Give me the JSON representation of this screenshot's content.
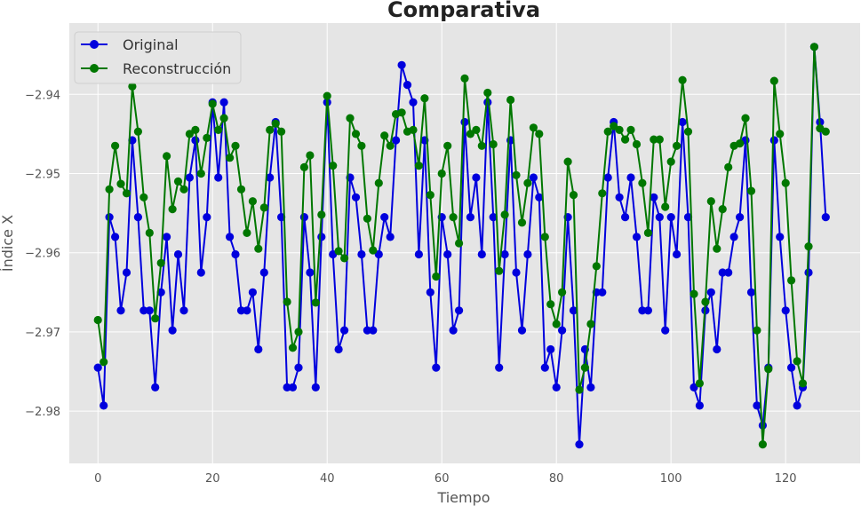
{
  "chart_data": {
    "type": "line",
    "title": "Comparativa",
    "xlabel": "Tiempo",
    "ylabel": "Índice X",
    "xlim": [
      -5,
      133
    ],
    "ylim": [
      -2.9866,
      -2.931
    ],
    "xticks": [
      0,
      20,
      40,
      60,
      80,
      100,
      120
    ],
    "xtick_labels": [
      "0",
      "20",
      "40",
      "60",
      "80",
      "100",
      "120"
    ],
    "yticks": [
      -2.98,
      -2.97,
      -2.96,
      -2.95,
      -2.94
    ],
    "ytick_labels": [
      "−2.98",
      "−2.97",
      "−2.96",
      "−2.95",
      "−2.94"
    ],
    "grid": true,
    "legend": "top-left",
    "series": [
      {
        "name": "Original",
        "color": "#0000dd",
        "x": [
          0,
          1,
          2,
          3,
          4,
          5,
          6,
          7,
          8,
          9,
          10,
          11,
          12,
          13,
          14,
          15,
          16,
          17,
          18,
          19,
          20,
          21,
          22,
          23,
          24,
          25,
          26,
          27,
          28,
          29,
          30,
          31,
          32,
          33,
          34,
          35,
          36,
          37,
          38,
          39,
          40,
          41,
          42,
          43,
          44,
          45,
          46,
          47,
          48,
          49,
          50,
          51,
          52,
          53,
          54,
          55,
          56,
          57,
          58,
          59,
          60,
          61,
          62,
          63,
          64,
          65,
          66,
          67,
          68,
          69,
          70,
          71,
          72,
          73,
          74,
          75,
          76,
          77,
          78,
          79,
          80,
          81,
          82,
          83,
          84,
          85,
          86,
          87,
          88,
          89,
          90,
          91,
          92,
          93,
          94,
          95,
          96,
          97,
          98,
          99,
          100,
          101,
          102,
          103,
          104,
          105,
          106,
          107,
          108,
          109,
          110,
          111,
          112,
          113,
          114,
          115,
          116,
          117,
          118,
          119,
          120,
          121,
          122,
          123,
          124,
          125,
          126,
          127
        ],
        "y": [
          -2.9745,
          -2.9793,
          -2.9555,
          -2.958,
          -2.9673,
          -2.9625,
          -2.9458,
          -2.9555,
          -2.9673,
          -2.9673,
          -2.977,
          -2.965,
          -2.958,
          -2.9698,
          -2.9602,
          -2.9673,
          -2.9505,
          -2.9458,
          -2.9625,
          -2.9555,
          -2.941,
          -2.9505,
          -2.941,
          -2.958,
          -2.9602,
          -2.9673,
          -2.9673,
          -2.965,
          -2.9722,
          -2.9625,
          -2.9505,
          -2.9435,
          -2.9555,
          -2.977,
          -2.977,
          -2.9745,
          -2.9555,
          -2.9625,
          -2.977,
          -2.958,
          -2.941,
          -2.9602,
          -2.9722,
          -2.9698,
          -2.9505,
          -2.953,
          -2.9602,
          -2.9698,
          -2.9698,
          -2.9602,
          -2.9555,
          -2.958,
          -2.9458,
          -2.9363,
          -2.9388,
          -2.941,
          -2.9602,
          -2.9458,
          -2.965,
          -2.9745,
          -2.9555,
          -2.9602,
          -2.9698,
          -2.9673,
          -2.9435,
          -2.9555,
          -2.9505,
          -2.9602,
          -2.941,
          -2.9555,
          -2.9745,
          -2.9602,
          -2.9458,
          -2.9625,
          -2.9698,
          -2.9602,
          -2.9505,
          -2.953,
          -2.9745,
          -2.9722,
          -2.977,
          -2.9698,
          -2.9555,
          -2.9673,
          -2.9842,
          -2.9722,
          -2.977,
          -2.965,
          -2.965,
          -2.9505,
          -2.9435,
          -2.953,
          -2.9555,
          -2.9505,
          -2.958,
          -2.9673,
          -2.9673,
          -2.953,
          -2.9555,
          -2.9698,
          -2.9555,
          -2.9602,
          -2.9435,
          -2.9555,
          -2.977,
          -2.9793,
          -2.9673,
          -2.965,
          -2.9722,
          -2.9625,
          -2.9625,
          -2.958,
          -2.9555,
          -2.9458,
          -2.965,
          -2.9793,
          -2.9818,
          -2.9745,
          -2.9458,
          -2.958,
          -2.9673,
          -2.9745,
          -2.9793,
          -2.977,
          -2.9625,
          -2.934,
          -2.9435,
          -2.9555
        ]
      },
      {
        "name": "Reconstrucción",
        "color": "#007700",
        "x": [
          0,
          1,
          2,
          3,
          4,
          5,
          6,
          7,
          8,
          9,
          10,
          11,
          12,
          13,
          14,
          15,
          16,
          17,
          18,
          19,
          20,
          21,
          22,
          23,
          24,
          25,
          26,
          27,
          28,
          29,
          30,
          31,
          32,
          33,
          34,
          35,
          36,
          37,
          38,
          39,
          40,
          41,
          42,
          43,
          44,
          45,
          46,
          47,
          48,
          49,
          50,
          51,
          52,
          53,
          54,
          55,
          56,
          57,
          58,
          59,
          60,
          61,
          62,
          63,
          64,
          65,
          66,
          67,
          68,
          69,
          70,
          71,
          72,
          73,
          74,
          75,
          76,
          77,
          78,
          79,
          80,
          81,
          82,
          83,
          84,
          85,
          86,
          87,
          88,
          89,
          90,
          91,
          92,
          93,
          94,
          95,
          96,
          97,
          98,
          99,
          100,
          101,
          102,
          103,
          104,
          105,
          106,
          107,
          108,
          109,
          110,
          111,
          112,
          113,
          114,
          115,
          116,
          117,
          118,
          119,
          120,
          121,
          122,
          123,
          124,
          125,
          126,
          127
        ],
        "y": [
          -2.9685,
          -2.9738,
          -2.952,
          -2.9465,
          -2.9513,
          -2.9525,
          -2.939,
          -2.9447,
          -2.953,
          -2.9575,
          -2.9683,
          -2.9613,
          -2.9478,
          -2.9545,
          -2.951,
          -2.952,
          -2.945,
          -2.9445,
          -2.95,
          -2.9455,
          -2.9412,
          -2.9445,
          -2.943,
          -2.948,
          -2.9465,
          -2.952,
          -2.9575,
          -2.9535,
          -2.9595,
          -2.9543,
          -2.9445,
          -2.9437,
          -2.9447,
          -2.9662,
          -2.972,
          -2.97,
          -2.9492,
          -2.9477,
          -2.9663,
          -2.9552,
          -2.9402,
          -2.949,
          -2.9598,
          -2.9607,
          -2.943,
          -2.945,
          -2.9465,
          -2.9557,
          -2.9597,
          -2.9512,
          -2.9452,
          -2.9465,
          -2.9425,
          -2.9423,
          -2.9447,
          -2.9445,
          -2.949,
          -2.9405,
          -2.9527,
          -2.963,
          -2.95,
          -2.9465,
          -2.9555,
          -2.9588,
          -2.938,
          -2.945,
          -2.9445,
          -2.9465,
          -2.9398,
          -2.9463,
          -2.9623,
          -2.9552,
          -2.9407,
          -2.9502,
          -2.9562,
          -2.9512,
          -2.9442,
          -2.945,
          -2.958,
          -2.9665,
          -2.969,
          -2.965,
          -2.9485,
          -2.9527,
          -2.9773,
          -2.9745,
          -2.969,
          -2.9617,
          -2.9525,
          -2.9447,
          -2.944,
          -2.9445,
          -2.9457,
          -2.9445,
          -2.9463,
          -2.9512,
          -2.9575,
          -2.9457,
          -2.9457,
          -2.9542,
          -2.9485,
          -2.9465,
          -2.9382,
          -2.9447,
          -2.9652,
          -2.9765,
          -2.9662,
          -2.9535,
          -2.9595,
          -2.9545,
          -2.9492,
          -2.9465,
          -2.9462,
          -2.943,
          -2.9522,
          -2.9698,
          -2.9842,
          -2.9747,
          -2.9383,
          -2.945,
          -2.9512,
          -2.9635,
          -2.9737,
          -2.9765,
          -2.9592,
          -2.934,
          -2.9443,
          -2.9447
        ]
      }
    ]
  }
}
